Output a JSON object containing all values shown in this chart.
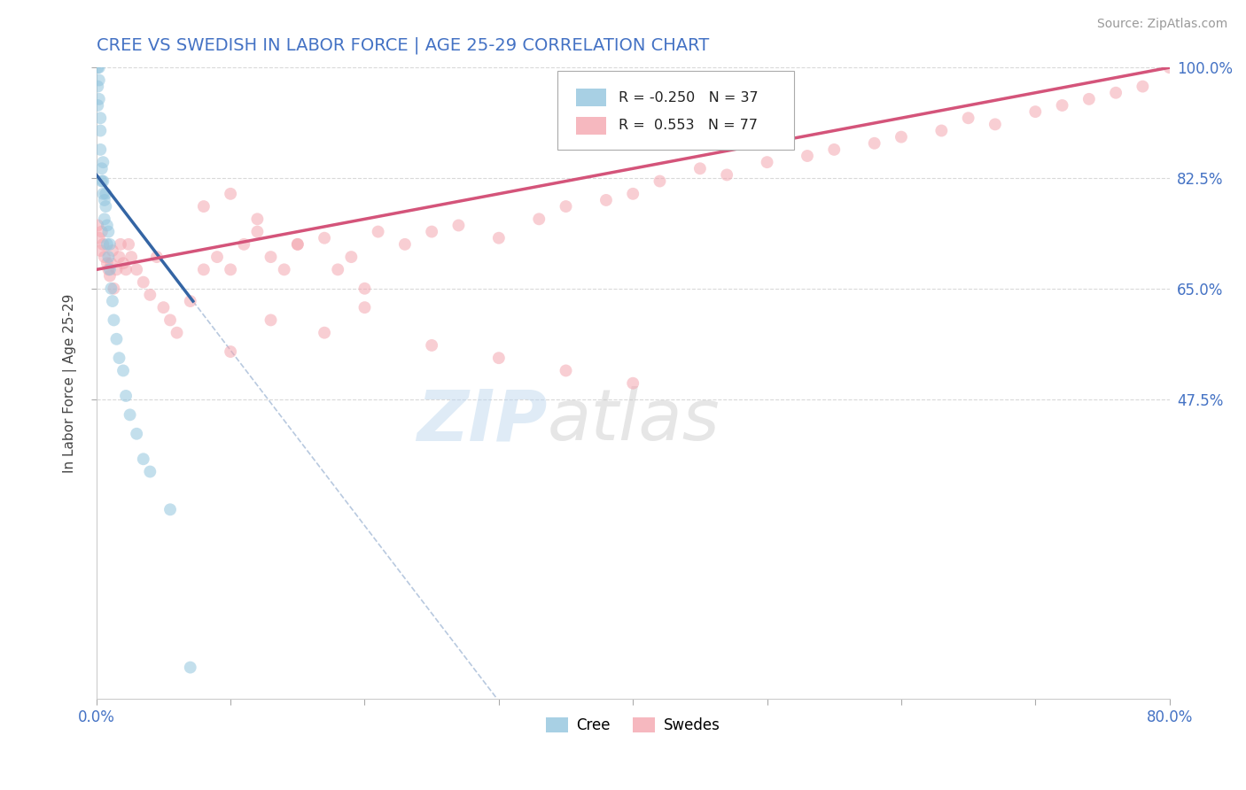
{
  "title": "CREE VS SWEDISH IN LABOR FORCE | AGE 25-29 CORRELATION CHART",
  "source_text": "Source: ZipAtlas.com",
  "ylabel": "In Labor Force | Age 25-29",
  "xlim": [
    0.0,
    0.8
  ],
  "ylim": [
    0.0,
    1.0
  ],
  "ytick_labels_right": [
    "47.5%",
    "65.0%",
    "82.5%",
    "100.0%"
  ],
  "yticks_right": [
    0.475,
    0.65,
    0.825,
    1.0
  ],
  "title_color": "#4472c4",
  "title_fontsize": 14,
  "source_color": "#999999",
  "source_fontsize": 10,
  "legend_R_cree": "-0.250",
  "legend_N_cree": "37",
  "legend_R_swedes": "0.553",
  "legend_N_swedes": "77",
  "cree_color": "#92c5de",
  "swedes_color": "#f4a6b0",
  "cree_line_color": "#3465a4",
  "swedes_line_color": "#d4547a",
  "grid_color": "#d0d0d0",
  "scatter_alpha": 0.55,
  "scatter_size": 100,
  "cree_x": [
    0.001,
    0.001,
    0.001,
    0.002,
    0.002,
    0.002,
    0.003,
    0.003,
    0.003,
    0.004,
    0.004,
    0.005,
    0.005,
    0.005,
    0.006,
    0.006,
    0.007,
    0.007,
    0.008,
    0.008,
    0.009,
    0.009,
    0.01,
    0.01,
    0.011,
    0.012,
    0.013,
    0.015,
    0.017,
    0.02,
    0.022,
    0.025,
    0.03,
    0.035,
    0.04,
    0.055,
    0.07
  ],
  "cree_y": [
    1.0,
    0.97,
    0.94,
    1.0,
    0.98,
    0.95,
    0.92,
    0.9,
    0.87,
    0.84,
    0.82,
    0.8,
    0.82,
    0.85,
    0.79,
    0.76,
    0.78,
    0.8,
    0.75,
    0.72,
    0.74,
    0.7,
    0.68,
    0.72,
    0.65,
    0.63,
    0.6,
    0.57,
    0.54,
    0.52,
    0.48,
    0.45,
    0.42,
    0.38,
    0.36,
    0.3,
    0.05
  ],
  "cree_line_x0": 0.0,
  "cree_line_y0": 0.83,
  "cree_line_x1": 0.072,
  "cree_line_y1": 0.63,
  "swedes_x": [
    0.001,
    0.002,
    0.003,
    0.004,
    0.005,
    0.006,
    0.008,
    0.009,
    0.01,
    0.011,
    0.012,
    0.013,
    0.015,
    0.017,
    0.018,
    0.02,
    0.022,
    0.024,
    0.026,
    0.03,
    0.035,
    0.04,
    0.045,
    0.05,
    0.055,
    0.06,
    0.07,
    0.08,
    0.09,
    0.1,
    0.11,
    0.12,
    0.13,
    0.14,
    0.15,
    0.17,
    0.19,
    0.21,
    0.23,
    0.25,
    0.27,
    0.3,
    0.33,
    0.35,
    0.38,
    0.4,
    0.42,
    0.45,
    0.47,
    0.5,
    0.53,
    0.55,
    0.58,
    0.6,
    0.63,
    0.65,
    0.67,
    0.7,
    0.72,
    0.74,
    0.76,
    0.78,
    0.8,
    0.1,
    0.13,
    0.17,
    0.2,
    0.25,
    0.3,
    0.08,
    0.1,
    0.12,
    0.15,
    0.18,
    0.2,
    0.35,
    0.4
  ],
  "swedes_y": [
    0.75,
    0.73,
    0.71,
    0.74,
    0.72,
    0.7,
    0.69,
    0.68,
    0.67,
    0.69,
    0.71,
    0.65,
    0.68,
    0.7,
    0.72,
    0.69,
    0.68,
    0.72,
    0.7,
    0.68,
    0.66,
    0.64,
    0.7,
    0.62,
    0.6,
    0.58,
    0.63,
    0.68,
    0.7,
    0.68,
    0.72,
    0.74,
    0.7,
    0.68,
    0.72,
    0.73,
    0.7,
    0.74,
    0.72,
    0.74,
    0.75,
    0.73,
    0.76,
    0.78,
    0.79,
    0.8,
    0.82,
    0.84,
    0.83,
    0.85,
    0.86,
    0.87,
    0.88,
    0.89,
    0.9,
    0.92,
    0.91,
    0.93,
    0.94,
    0.95,
    0.96,
    0.97,
    1.0,
    0.55,
    0.6,
    0.58,
    0.62,
    0.56,
    0.54,
    0.78,
    0.8,
    0.76,
    0.72,
    0.68,
    0.65,
    0.52,
    0.5
  ],
  "swedes_line_x0": 0.0,
  "swedes_line_y0": 0.68,
  "swedes_line_x1": 0.8,
  "swedes_line_y1": 1.0,
  "diag_line_x0": 0.27,
  "diag_line_y0": 0.82,
  "diag_line_x1": 0.65,
  "diag_line_y1": 0.0
}
